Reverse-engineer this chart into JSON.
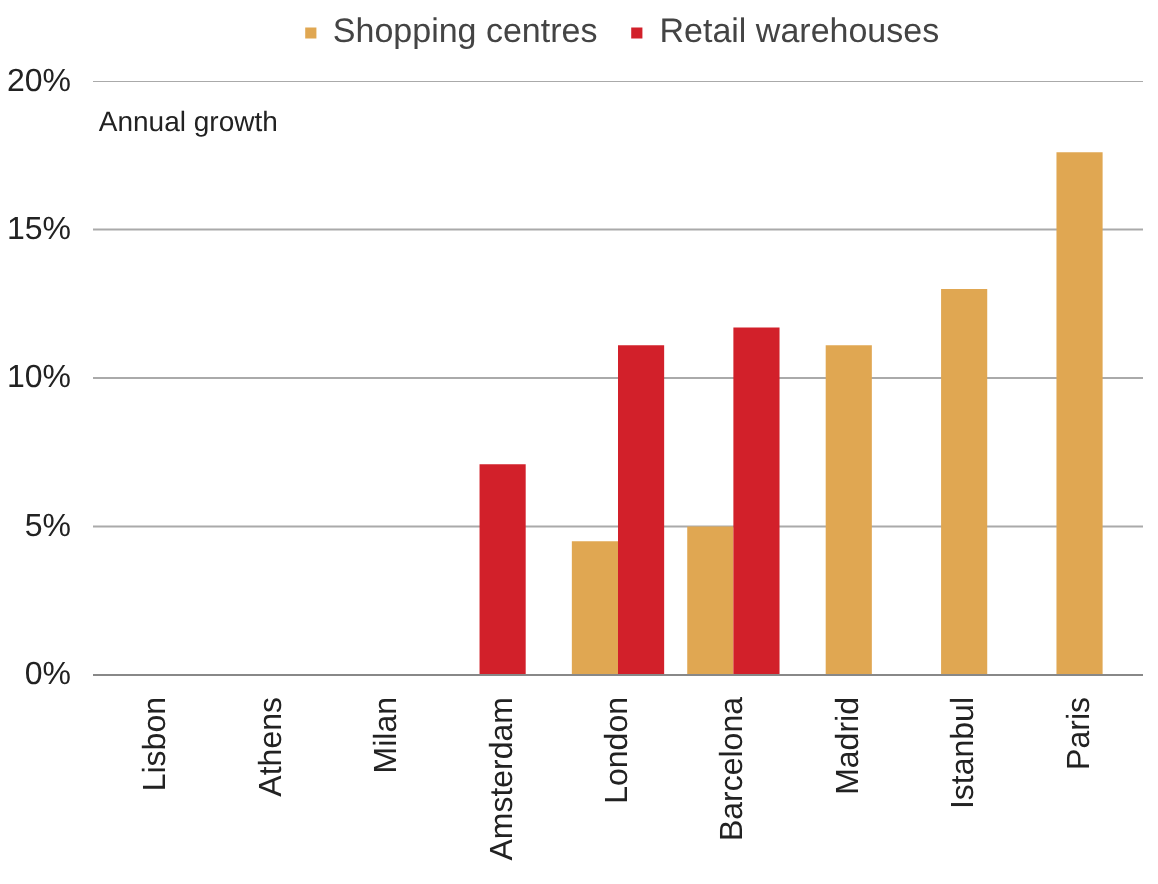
{
  "chart_data": {
    "type": "bar",
    "categories": [
      "Lisbon",
      "Athens",
      "Milan",
      "Amsterdam",
      "London",
      "Barcelona",
      "Madrid",
      "Istanbul",
      "Paris"
    ],
    "series": [
      {
        "name": "Shopping centres",
        "color": "#e0a752",
        "values": [
          null,
          null,
          null,
          null,
          4.5,
          5.0,
          11.1,
          13.0,
          17.6
        ]
      },
      {
        "name": "Retail warehouses",
        "color": "#d2202a",
        "values": [
          null,
          null,
          null,
          7.1,
          11.1,
          11.7,
          null,
          null,
          null
        ]
      }
    ],
    "ylim": [
      0,
      20
    ],
    "yticks": [
      {
        "value": 0,
        "label": "0%"
      },
      {
        "value": 5,
        "label": "5%"
      },
      {
        "value": 10,
        "label": "10%"
      },
      {
        "value": 15,
        "label": "15%"
      },
      {
        "value": 20,
        "label": "20%"
      }
    ],
    "annotations": [
      "Annual growth"
    ],
    "grid": "y",
    "legend": "top"
  }
}
